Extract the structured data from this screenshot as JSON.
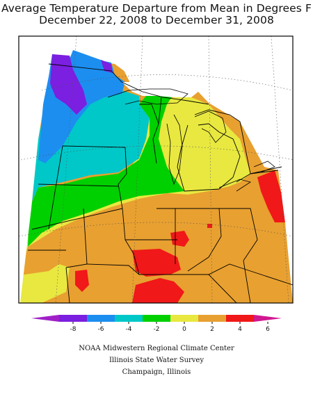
{
  "title": {
    "line1": "Average Temperature Departure from Mean in Degrees F",
    "line2": "December 22, 2008 to December 31, 2008"
  },
  "legend": {
    "ticks": [
      "-8",
      "-6",
      "-4",
      "-2",
      "0",
      "2",
      "4",
      "6"
    ],
    "colors": [
      "#a020c8",
      "#7b1fe0",
      "#1c8ef0",
      "#00c8c8",
      "#00d000",
      "#e8e840",
      "#e8a030",
      "#f01818",
      "#d01890"
    ]
  },
  "credits": {
    "line1": "NOAA Midwestern Regional Climate Center",
    "line2": "Illinois State Water Survey",
    "line3": "Champaign, Illinois"
  }
}
